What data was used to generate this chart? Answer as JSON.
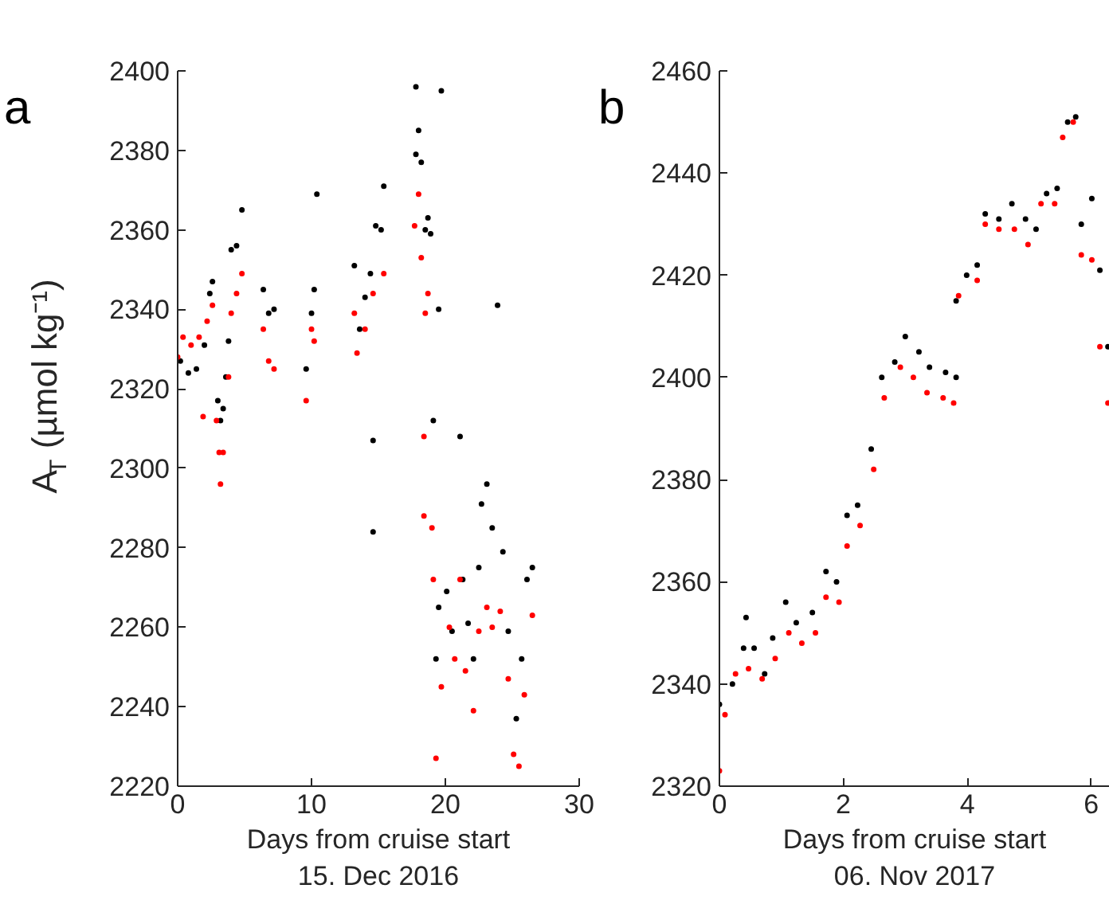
{
  "chart_data": [
    {
      "type": "scatter",
      "title": "a",
      "xlabel": "Days from cruise start\n15. Dec 2016",
      "ylabel": "A$_{T}$ (µmol kg⁻¹)",
      "xlim": [
        0,
        30
      ],
      "xticks": [
        0,
        10,
        20,
        30
      ],
      "ylim": [
        2220,
        2400
      ],
      "yticks": [
        2220,
        2240,
        2260,
        2280,
        2300,
        2320,
        2340,
        2360,
        2380,
        2400
      ],
      "grid": false,
      "marker": "circle",
      "series": [
        {
          "color": "#000000",
          "x": [
            0.2,
            0.8,
            1.4,
            2.0,
            2.4,
            2.6,
            3.0,
            3.2,
            3.4,
            3.6,
            3.8,
            4.0,
            4.4,
            4.8,
            6.4,
            6.8,
            7.2,
            9.6,
            10.0,
            10.2,
            10.4,
            13.2,
            13.6,
            14.0,
            14.4,
            14.6,
            14.6,
            14.8,
            15.2,
            15.4,
            17.8,
            17.8,
            18.0,
            18.2,
            18.5,
            18.7,
            18.9,
            19.5,
            19.7,
            19.1,
            19.3,
            19.5,
            20.1,
            20.5,
            21.1,
            21.3,
            21.7,
            22.1,
            22.5,
            22.7,
            23.1,
            23.5,
            23.9,
            24.3,
            24.7,
            25.3,
            25.7,
            26.1,
            26.5
          ],
          "values": [
            2327,
            2324,
            2325,
            2331,
            2344,
            2347,
            2317,
            2312,
            2315,
            2323,
            2332,
            2355,
            2356,
            2365,
            2345,
            2339,
            2340,
            2325,
            2339,
            2345,
            2369,
            2351,
            2335,
            2343,
            2349,
            2307,
            2284,
            2361,
            2360,
            2371,
            2396,
            2379,
            2385,
            2377,
            2360,
            2363,
            2359,
            2340,
            2395,
            2312,
            2252,
            2265,
            2269,
            2259,
            2308,
            2272,
            2261,
            2252,
            2275,
            2291,
            2296,
            2285,
            2341,
            2279,
            2259,
            2237,
            2252,
            2272,
            2275
          ]
        },
        {
          "color": "#ff0000",
          "x": [
            0.0,
            0.4,
            1.0,
            1.6,
            1.9,
            2.2,
            2.6,
            2.9,
            3.1,
            3.2,
            3.4,
            3.8,
            4.0,
            4.4,
            4.8,
            6.4,
            6.8,
            7.2,
            9.6,
            10.0,
            10.2,
            13.2,
            13.4,
            14.0,
            14.6,
            15.4,
            17.7,
            18.0,
            18.2,
            18.5,
            18.7,
            18.4,
            18.4,
            19.0,
            19.1,
            19.3,
            19.7,
            20.3,
            20.7,
            21.1,
            21.5,
            22.1,
            22.5,
            23.1,
            23.5,
            24.1,
            24.7,
            25.1,
            25.5,
            25.9,
            26.5
          ],
          "values": [
            2328,
            2333,
            2331,
            2333,
            2313,
            2337,
            2341,
            2312,
            2304,
            2296,
            2304,
            2323,
            2339,
            2344,
            2349,
            2335,
            2327,
            2325,
            2317,
            2335,
            2332,
            2339,
            2329,
            2335,
            2344,
            2349,
            2361,
            2369,
            2353,
            2339,
            2344,
            2308,
            2288,
            2285,
            2272,
            2227,
            2245,
            2260,
            2252,
            2272,
            2249,
            2239,
            2259,
            2265,
            2260,
            2264,
            2247,
            2228,
            2225,
            2243,
            2263
          ]
        }
      ]
    },
    {
      "type": "scatter",
      "title": "b",
      "xlabel": "Days from cruise start\n06. Nov 2017",
      "xlim": [
        0,
        6.3
      ],
      "xticks": [
        0,
        2,
        4,
        6
      ],
      "ylim": [
        2320,
        2460
      ],
      "yticks": [
        2320,
        2340,
        2360,
        2380,
        2400,
        2420,
        2440,
        2460
      ],
      "grid": false,
      "marker": "circle",
      "series": [
        {
          "color": "#000000",
          "x": [
            0,
            0.21,
            0.39,
            0.43,
            0.56,
            0.73,
            0.86,
            1.07,
            1.24,
            1.5,
            1.72,
            1.89,
            2.06,
            2.23,
            2.45,
            2.62,
            2.83,
            3.0,
            3.22,
            3.39,
            3.65,
            3.82,
            3.82,
            3.99,
            4.16,
            4.29,
            4.51,
            4.72,
            4.94,
            5.11,
            5.28,
            5.45,
            5.62,
            5.75,
            5.84,
            6.01,
            6.14,
            6.27
          ],
          "values": [
            2336,
            2340,
            2347,
            2353,
            2347,
            2342,
            2349,
            2356,
            2352,
            2354,
            2362,
            2360,
            2373,
            2375,
            2386,
            2400,
            2403,
            2408,
            2405,
            2402,
            2401,
            2400,
            2415,
            2420,
            2422,
            2432,
            2431,
            2434,
            2431,
            2429,
            2436,
            2437,
            2450,
            2451,
            2430,
            2435,
            2421,
            2406
          ]
        },
        {
          "color": "#ff0000",
          "x": [
            0,
            0.09,
            0.26,
            0.47,
            0.69,
            0.9,
            1.12,
            1.33,
            1.55,
            1.72,
            1.93,
            2.06,
            2.27,
            2.49,
            2.66,
            2.92,
            3.13,
            3.35,
            3.61,
            3.78,
            3.86,
            4.16,
            4.29,
            4.51,
            4.76,
            4.98,
            5.19,
            5.41,
            5.54,
            5.71,
            5.84,
            6.01,
            6.14,
            6.27
          ],
          "values": [
            2323,
            2334,
            2342,
            2343,
            2341,
            2345,
            2350,
            2348,
            2350,
            2357,
            2356,
            2367,
            2371,
            2382,
            2396,
            2402,
            2400,
            2397,
            2396,
            2395,
            2416,
            2419,
            2430,
            2429,
            2429,
            2426,
            2434,
            2434,
            2447,
            2450,
            2424,
            2423,
            2406,
            2395
          ]
        }
      ]
    }
  ]
}
